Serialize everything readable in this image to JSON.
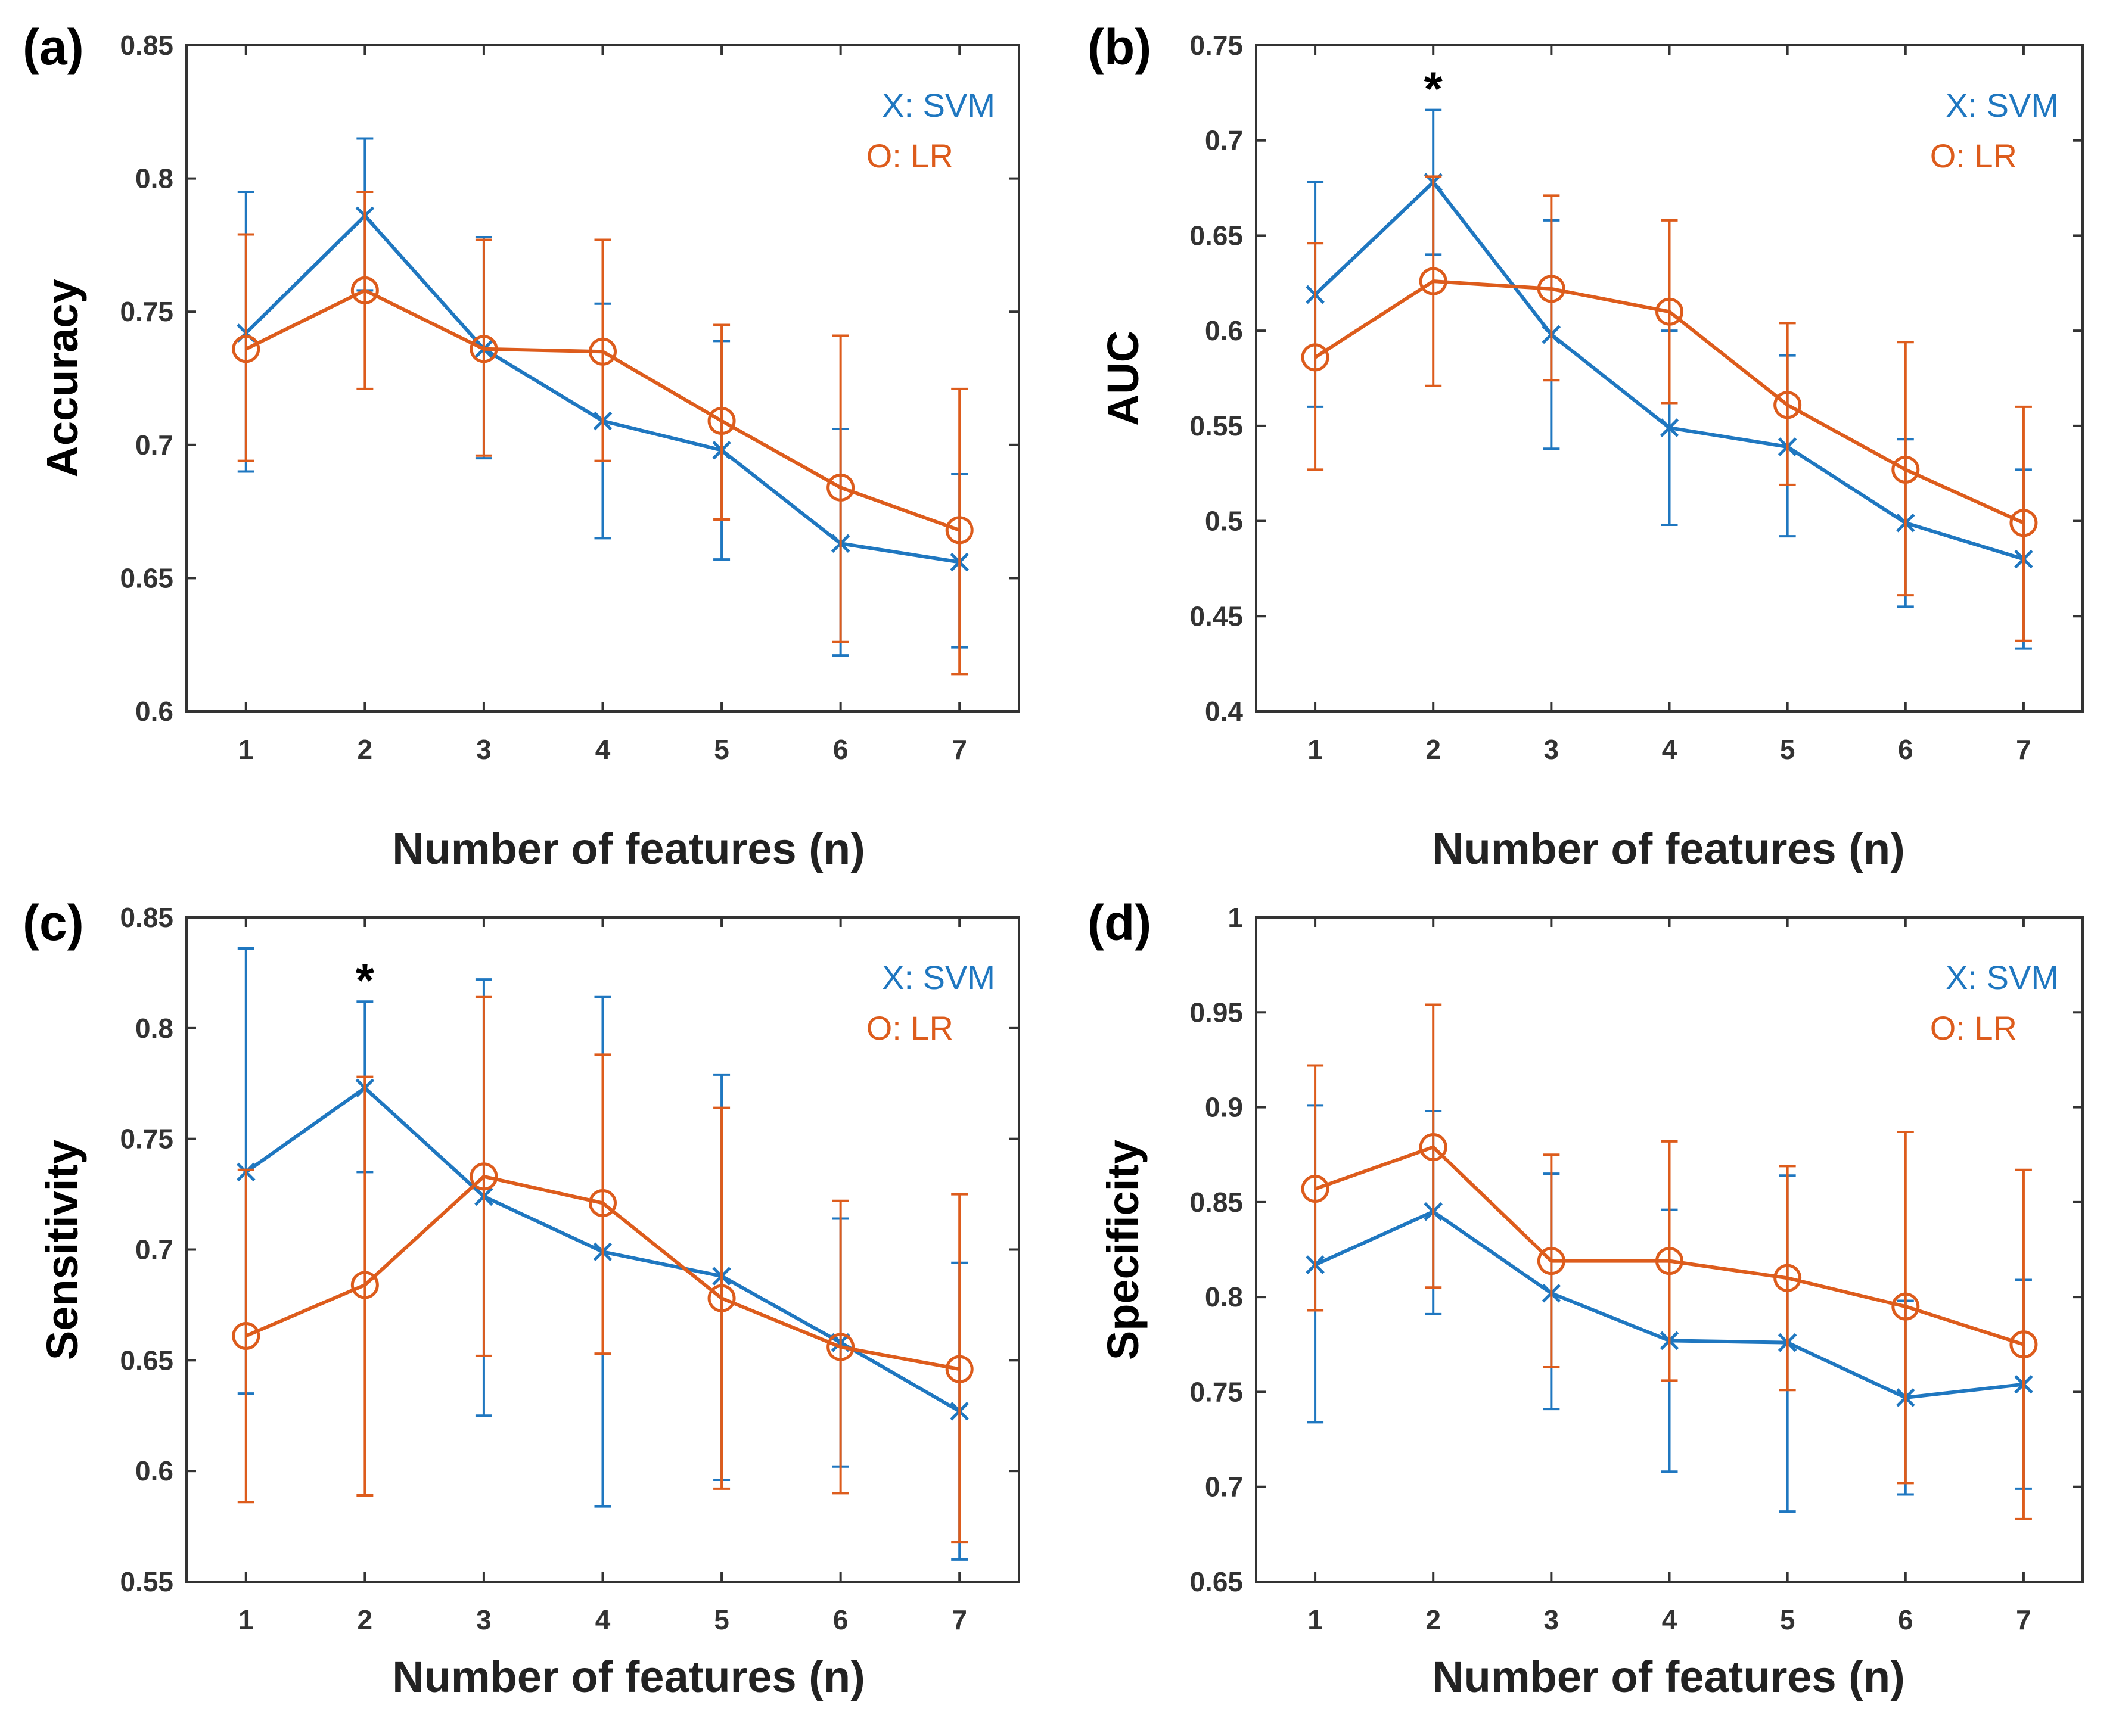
{
  "colors": {
    "svm": "#1f77c0",
    "lr": "#dd5c1c",
    "axis": "#333333"
  },
  "chart_data": [
    {
      "type": "line",
      "panel_label": "(a)",
      "ylabel": "Accuracy",
      "xlabel": "Number of features (n)",
      "ylim": [
        0.6,
        0.85
      ],
      "yticks": [
        0.6,
        0.65,
        0.7,
        0.75,
        0.8,
        0.85
      ],
      "ytick_labels": [
        "0.6",
        "0.65",
        "0.7",
        "0.75",
        "0.8",
        "0.85"
      ],
      "x": [
        1,
        2,
        3,
        4,
        5,
        6,
        7
      ],
      "xtick_labels": [
        "1",
        "2",
        "3",
        "4",
        "5",
        "6",
        "7"
      ],
      "legend": [
        "X: SVM",
        "O: LR"
      ],
      "star_at": null,
      "star": "",
      "series": [
        {
          "name": "SVM",
          "marker": "x",
          "values": [
            0.742,
            0.786,
            0.736,
            0.709,
            0.698,
            0.663,
            0.656
          ],
          "err_low": [
            0.69,
            0.758,
            0.695,
            0.665,
            0.657,
            0.621,
            0.624
          ],
          "err_high": [
            0.795,
            0.815,
            0.778,
            0.753,
            0.739,
            0.706,
            0.689
          ]
        },
        {
          "name": "LR",
          "marker": "o",
          "values": [
            0.736,
            0.758,
            0.736,
            0.735,
            0.709,
            0.684,
            0.668
          ],
          "err_low": [
            0.694,
            0.721,
            0.696,
            0.694,
            0.672,
            0.626,
            0.614
          ],
          "err_high": [
            0.779,
            0.795,
            0.777,
            0.777,
            0.745,
            0.741,
            0.721
          ]
        }
      ]
    },
    {
      "type": "line",
      "panel_label": "(b)",
      "ylabel": "AUC",
      "xlabel": "Number of features (n)",
      "ylim": [
        0.4,
        0.75
      ],
      "yticks": [
        0.4,
        0.45,
        0.5,
        0.55,
        0.6,
        0.65,
        0.7,
        0.75
      ],
      "ytick_labels": [
        "0.4",
        "0.45",
        "0.5",
        "0.55",
        "0.6",
        "0.65",
        "0.7",
        "0.75"
      ],
      "x": [
        1,
        2,
        3,
        4,
        5,
        6,
        7
      ],
      "xtick_labels": [
        "1",
        "2",
        "3",
        "4",
        "5",
        "6",
        "7"
      ],
      "legend": [
        "X: SVM",
        "O: LR"
      ],
      "star_at": 2,
      "star": "*",
      "series": [
        {
          "name": "SVM",
          "marker": "x",
          "values": [
            0.619,
            0.678,
            0.598,
            0.549,
            0.539,
            0.499,
            0.48
          ],
          "err_low": [
            0.56,
            0.64,
            0.538,
            0.498,
            0.492,
            0.455,
            0.433
          ],
          "err_high": [
            0.678,
            0.716,
            0.658,
            0.6,
            0.587,
            0.543,
            0.527
          ]
        },
        {
          "name": "LR",
          "marker": "o",
          "values": [
            0.586,
            0.626,
            0.622,
            0.61,
            0.561,
            0.527,
            0.499
          ],
          "err_low": [
            0.527,
            0.571,
            0.574,
            0.562,
            0.519,
            0.461,
            0.437
          ],
          "err_high": [
            0.646,
            0.681,
            0.671,
            0.658,
            0.604,
            0.594,
            0.56
          ]
        }
      ]
    },
    {
      "type": "line",
      "panel_label": "(c)",
      "ylabel": "Sensitivity",
      "xlabel": "Number of features (n)",
      "ylim": [
        0.55,
        0.85
      ],
      "yticks": [
        0.55,
        0.6,
        0.65,
        0.7,
        0.75,
        0.8,
        0.85
      ],
      "ytick_labels": [
        "0.55",
        "0.6",
        "0.65",
        "0.7",
        "0.75",
        "0.8",
        "0.85"
      ],
      "x": [
        1,
        2,
        3,
        4,
        5,
        6,
        7
      ],
      "xtick_labels": [
        "1",
        "2",
        "3",
        "4",
        "5",
        "6",
        "7"
      ],
      "legend": [
        "X: SVM",
        "O: LR"
      ],
      "star_at": 2,
      "star": "*",
      "series": [
        {
          "name": "SVM",
          "marker": "x",
          "values": [
            0.735,
            0.773,
            0.724,
            0.699,
            0.688,
            0.658,
            0.627
          ],
          "err_low": [
            0.635,
            0.735,
            0.625,
            0.584,
            0.596,
            0.602,
            0.56
          ],
          "err_high": [
            0.836,
            0.812,
            0.822,
            0.814,
            0.779,
            0.714,
            0.694
          ]
        },
        {
          "name": "LR",
          "marker": "o",
          "values": [
            0.661,
            0.684,
            0.733,
            0.721,
            0.678,
            0.656,
            0.646
          ],
          "err_low": [
            0.586,
            0.589,
            0.652,
            0.653,
            0.592,
            0.59,
            0.568
          ],
          "err_high": [
            0.736,
            0.778,
            0.814,
            0.788,
            0.764,
            0.722,
            0.725
          ]
        }
      ]
    },
    {
      "type": "line",
      "panel_label": "(d)",
      "ylabel": "Specificity",
      "xlabel": "Number of features (n)",
      "ylim": [
        0.65,
        1.0
      ],
      "yticks": [
        0.65,
        0.7,
        0.75,
        0.8,
        0.85,
        0.9,
        0.95,
        1.0
      ],
      "ytick_labels": [
        "0.65",
        "0.7",
        "0.75",
        "0.8",
        "0.85",
        "0.9",
        "0.95",
        "1"
      ],
      "x": [
        1,
        2,
        3,
        4,
        5,
        6,
        7
      ],
      "xtick_labels": [
        "1",
        "2",
        "3",
        "4",
        "5",
        "6",
        "7"
      ],
      "legend": [
        "X: SVM",
        "O: LR"
      ],
      "star_at": null,
      "star": "",
      "series": [
        {
          "name": "SVM",
          "marker": "x",
          "values": [
            0.817,
            0.845,
            0.802,
            0.777,
            0.776,
            0.747,
            0.754
          ],
          "err_low": [
            0.734,
            0.791,
            0.741,
            0.708,
            0.687,
            0.696,
            0.699
          ],
          "err_high": [
            0.901,
            0.898,
            0.865,
            0.846,
            0.864,
            0.798,
            0.809
          ]
        },
        {
          "name": "LR",
          "marker": "o",
          "values": [
            0.857,
            0.879,
            0.819,
            0.819,
            0.81,
            0.795,
            0.775
          ],
          "err_low": [
            0.793,
            0.805,
            0.763,
            0.756,
            0.751,
            0.702,
            0.683
          ],
          "err_high": [
            0.922,
            0.954,
            0.875,
            0.882,
            0.869,
            0.887,
            0.867
          ]
        }
      ]
    }
  ]
}
